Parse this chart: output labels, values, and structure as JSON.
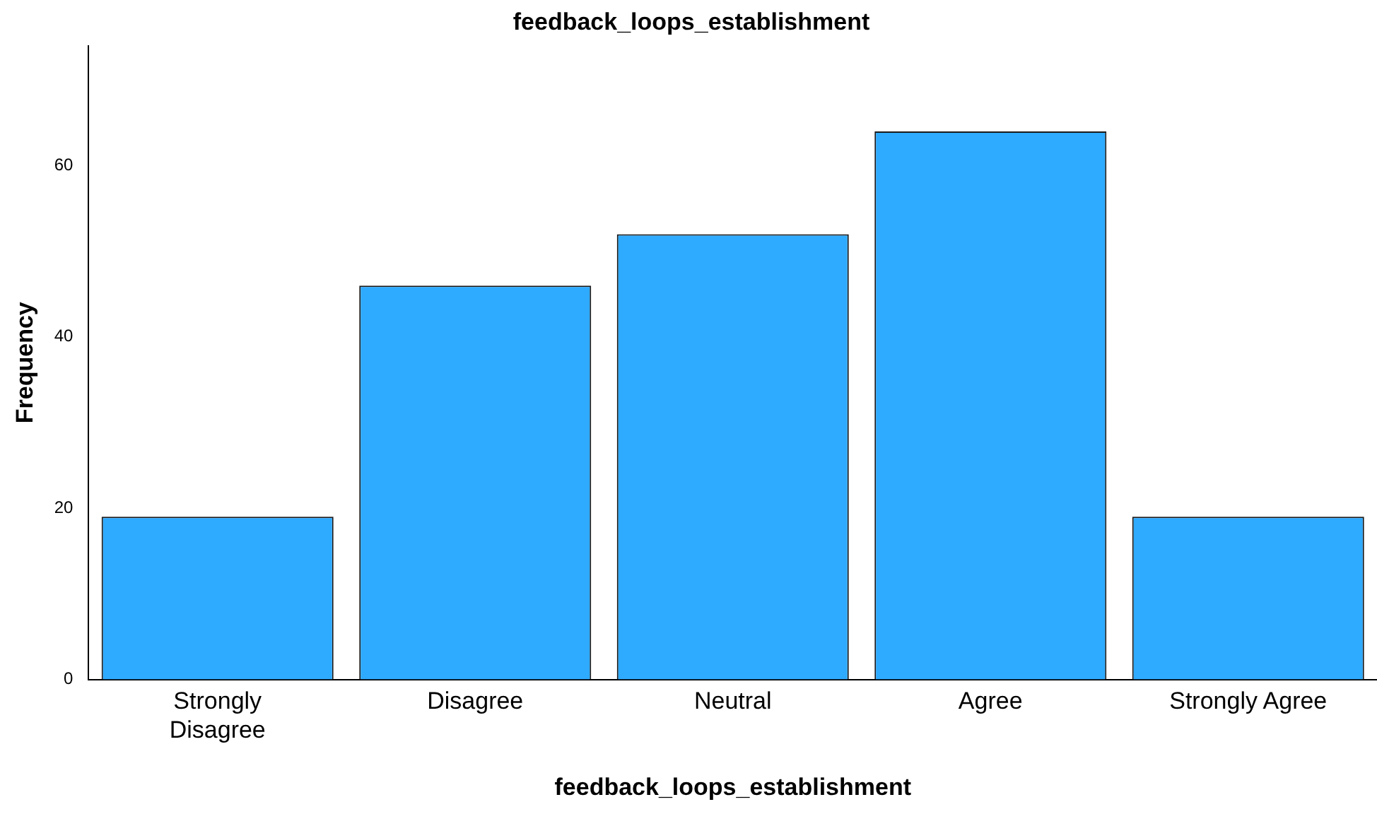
{
  "chart_data": {
    "type": "bar",
    "title": "feedback_loops_establishment",
    "xlabel": "feedback_loops_establishment",
    "ylabel": "Frequency",
    "categories": [
      "Strongly Disagree",
      "Disagree",
      "Neutral",
      "Agree",
      "Strongly Agree"
    ],
    "values": [
      19,
      46,
      52,
      64,
      19
    ],
    "color": "#2eaaff",
    "ylim": [
      0,
      74
    ],
    "yticks": [
      0,
      20,
      40,
      60
    ],
    "grid": false,
    "legend": false
  }
}
